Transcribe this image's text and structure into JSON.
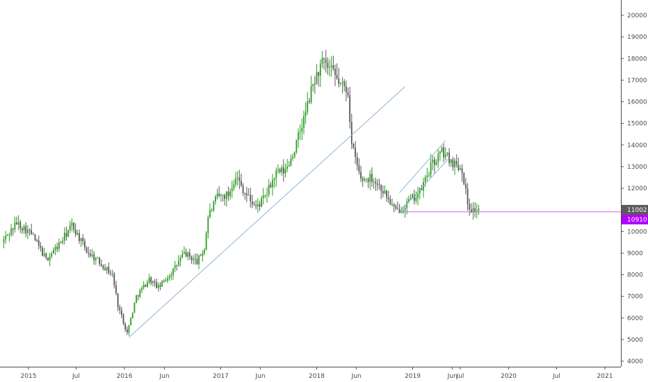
{
  "chart_data": {
    "type": "candlestick",
    "interval": "weekly",
    "colors": {
      "up": "#2a9d1f",
      "down": "#555555",
      "trendline": "#8eb4d8",
      "support": "#e066ff",
      "last_price_badge": "#5a5a5a",
      "line_price_badge": "#b000ff",
      "axis": "#4a4a4a"
    },
    "x_axis": {
      "ticks": [
        {
          "label": "2015",
          "date": "2015-01-01"
        },
        {
          "label": "Jul",
          "date": "2015-07-01"
        },
        {
          "label": "2016",
          "date": "2016-01-01"
        },
        {
          "label": "Jun",
          "date": "2016-06-01"
        },
        {
          "label": "2017",
          "date": "2017-01-01"
        },
        {
          "label": "Jun",
          "date": "2017-06-01"
        },
        {
          "label": "2018",
          "date": "2018-01-01"
        },
        {
          "label": "Jun",
          "date": "2018-06-01"
        },
        {
          "label": "2019",
          "date": "2019-01-01"
        },
        {
          "label": "Jun",
          "date": "2019-06-01"
        },
        {
          "label": "Jul",
          "date": "2019-07-01"
        },
        {
          "label": "2020",
          "date": "2020-01-01"
        },
        {
          "label": "Jul",
          "date": "2020-07-01"
        },
        {
          "label": "2021",
          "date": "2021-01-01"
        }
      ]
    },
    "y_axis": {
      "ticks": [
        4000,
        5000,
        6000,
        7000,
        8000,
        9000,
        10000,
        11000,
        12000,
        13000,
        14000,
        15000,
        16000,
        17000,
        18000,
        19000,
        20000
      ],
      "range": [
        3600,
        20600
      ]
    },
    "price_anchors": [
      [
        "2014-09-29",
        9500
      ],
      [
        "2014-11-24",
        10400
      ],
      [
        "2015-01-19",
        9900
      ],
      [
        "2015-03-16",
        8700
      ],
      [
        "2015-05-11",
        9500
      ],
      [
        "2015-06-22",
        10300
      ],
      [
        "2015-08-17",
        9100
      ],
      [
        "2015-10-12",
        8500
      ],
      [
        "2015-11-23",
        8000
      ],
      [
        "2015-12-14",
        6600
      ],
      [
        "2016-01-18",
        5300
      ],
      [
        "2016-02-22",
        7000
      ],
      [
        "2016-04-11",
        7800
      ],
      [
        "2016-05-16",
        7400
      ],
      [
        "2016-07-11",
        8200
      ],
      [
        "2016-08-22",
        9000
      ],
      [
        "2016-10-10",
        8600
      ],
      [
        "2016-11-07",
        9200
      ],
      [
        "2016-11-21",
        10700
      ],
      [
        "2016-12-26",
        11600
      ],
      [
        "2017-02-06",
        11700
      ],
      [
        "2017-03-06",
        12600
      ],
      [
        "2017-04-10",
        11800
      ],
      [
        "2017-05-22",
        11100
      ],
      [
        "2017-06-26",
        11600
      ],
      [
        "2017-08-07",
        12700
      ],
      [
        "2017-09-11",
        12800
      ],
      [
        "2017-10-16",
        13800
      ],
      [
        "2017-11-20",
        15200
      ],
      [
        "2017-12-25",
        16800
      ],
      [
        "2018-01-29",
        17800
      ],
      [
        "2018-03-05",
        17400
      ],
      [
        "2018-04-09",
        16800
      ],
      [
        "2018-05-07",
        16500
      ],
      [
        "2018-05-21",
        14000
      ],
      [
        "2018-06-25",
        12400
      ],
      [
        "2018-08-06",
        12500
      ],
      [
        "2018-09-17",
        11900
      ],
      [
        "2018-11-05",
        10900
      ],
      [
        "2018-12-17",
        11300
      ],
      [
        "2019-02-04",
        11800
      ],
      [
        "2019-03-18",
        13000
      ],
      [
        "2019-04-29",
        13700
      ],
      [
        "2019-06-10",
        13200
      ],
      [
        "2019-07-15",
        12900
      ],
      [
        "2019-08-05",
        11300
      ],
      [
        "2019-08-19",
        11000
      ],
      [
        "2019-09-09",
        11000
      ]
    ],
    "trendlines": [
      {
        "type": "long-uptrend",
        "from": [
          "2016-01-18",
          5100
        ],
        "to": [
          "2018-12-03",
          16700
        ]
      },
      {
        "type": "channel-lower",
        "from": [
          "2018-11-12",
          10900
        ],
        "to": [
          "2019-05-20",
          13400
        ]
      },
      {
        "type": "channel-upper",
        "from": [
          "2018-11-12",
          11800
        ],
        "to": [
          "2019-05-06",
          14200
        ]
      }
    ],
    "horizontal_line": {
      "price": 10910,
      "from_date": "2018-11-05"
    },
    "last_price_label": "11002",
    "line_price_label": "10910"
  }
}
